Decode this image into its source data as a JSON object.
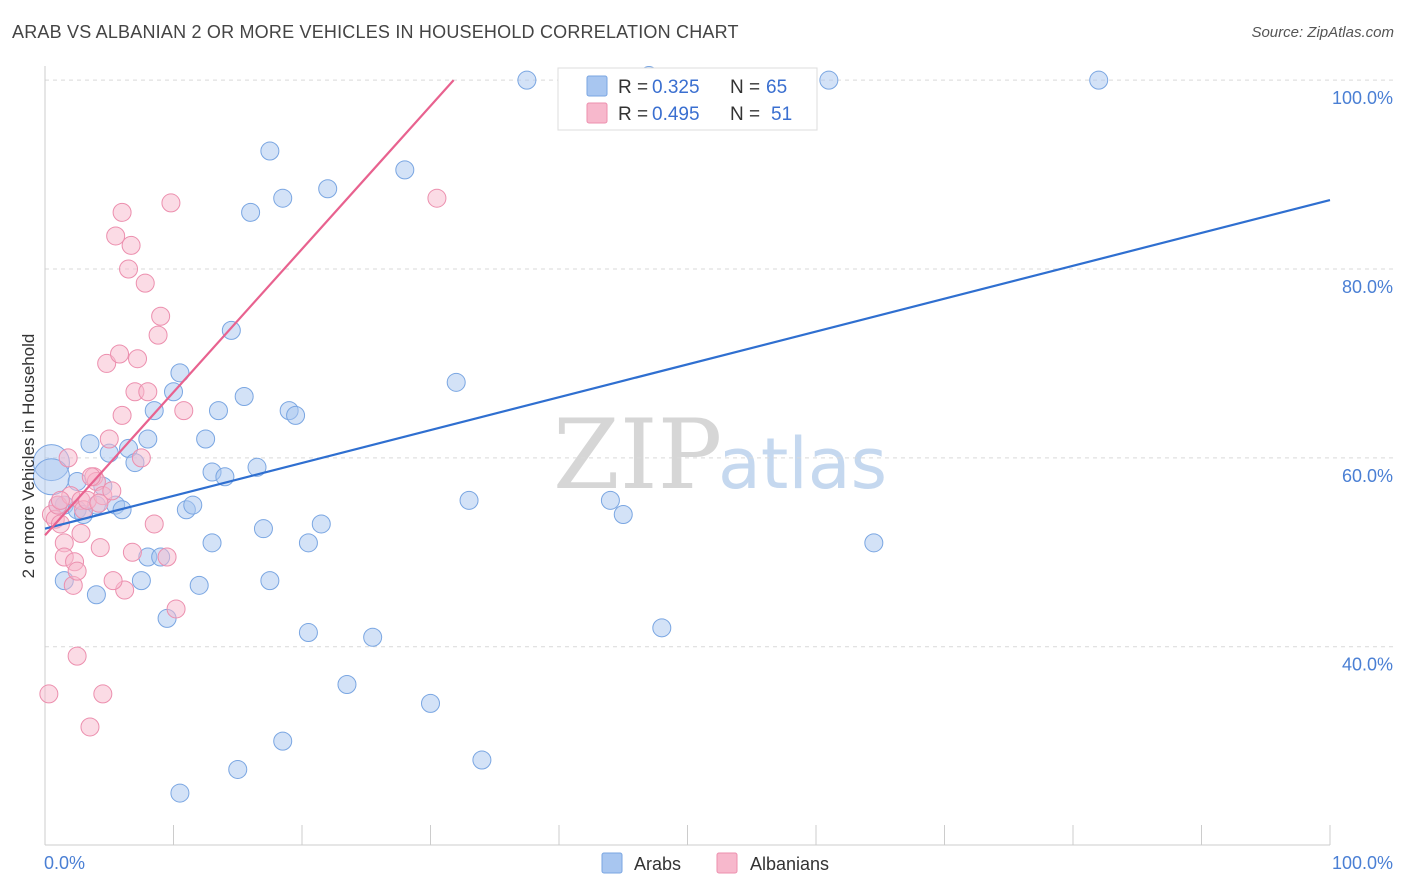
{
  "header": {
    "title": "ARAB VS ALBANIAN 2 OR MORE VEHICLES IN HOUSEHOLD CORRELATION CHART",
    "source": "Source: ZipAtlas.com"
  },
  "watermark": {
    "zip": "ZIP",
    "atlas": "atlas"
  },
  "legend": {
    "items": [
      {
        "r_label": "R =",
        "r_value": "0.325",
        "n_label": "N =",
        "n_value": "65",
        "color": "#a8c6f0"
      },
      {
        "r_label": "R =",
        "r_value": "0.495",
        "n_label": "N =",
        "n_value": "51",
        "color": "#f7b8cc"
      }
    ]
  },
  "bottom_legend": {
    "arabs": "Arabs",
    "albanians": "Albanians"
  },
  "chart_data": {
    "type": "scatter",
    "title": "ARAB VS ALBANIAN 2 OR MORE VEHICLES IN HOUSEHOLD CORRELATION CHART",
    "xlabel": "",
    "ylabel": "2 or more Vehicles in Household",
    "xlim": [
      0,
      100
    ],
    "ylim": [
      19,
      101.5
    ],
    "x_tick_labels": [
      "0.0%",
      "100.0%"
    ],
    "y_ticks": [
      40,
      60,
      80,
      100
    ],
    "y_tick_labels": [
      "40.0%",
      "60.0%",
      "80.0%",
      "100.0%"
    ],
    "grid": true,
    "legend_position": "top-center",
    "colors": {
      "arabs": "#2f6fd0",
      "albanians": "#e8628f",
      "arabs_fill": "#a8c6f0",
      "albanians_fill": "#f7b8cc"
    },
    "series": [
      {
        "name": "Arabs",
        "r": 0.325,
        "n": 65,
        "trend": {
          "x": [
            0,
            100
          ],
          "y": [
            52.5,
            87.3
          ]
        },
        "points": [
          [
            0.5,
            59.5
          ],
          [
            0.5,
            58
          ],
          [
            1.5,
            55
          ],
          [
            1.5,
            47
          ],
          [
            2.5,
            57.5
          ],
          [
            2.5,
            54.5
          ],
          [
            3,
            54
          ],
          [
            3.5,
            61.5
          ],
          [
            4,
            55
          ],
          [
            4,
            45.5
          ],
          [
            4.5,
            57
          ],
          [
            5,
            60.5
          ],
          [
            5.5,
            55
          ],
          [
            6,
            54.5
          ],
          [
            6.5,
            61
          ],
          [
            7,
            59.5
          ],
          [
            7.5,
            47
          ],
          [
            8,
            49.5
          ],
          [
            8,
            62
          ],
          [
            8.5,
            65
          ],
          [
            9,
            49.5
          ],
          [
            9.5,
            43
          ],
          [
            10,
            67
          ],
          [
            10.5,
            69
          ],
          [
            11,
            54.5
          ],
          [
            11.5,
            55
          ],
          [
            12,
            46.5
          ],
          [
            12.5,
            62
          ],
          [
            13,
            58.5
          ],
          [
            13,
            51
          ],
          [
            13.5,
            65
          ],
          [
            14,
            58
          ],
          [
            14.5,
            73.5
          ],
          [
            15,
            27
          ],
          [
            15.5,
            66.5
          ],
          [
            16,
            86
          ],
          [
            16.5,
            59
          ],
          [
            17,
            52.5
          ],
          [
            17.5,
            47
          ],
          [
            17.5,
            92.5
          ],
          [
            18.5,
            30
          ],
          [
            18.5,
            87.5
          ],
          [
            19,
            65
          ],
          [
            19.5,
            64.5
          ],
          [
            20.5,
            41.5
          ],
          [
            20.5,
            51
          ],
          [
            21.5,
            53
          ],
          [
            22,
            88.5
          ],
          [
            23.5,
            36
          ],
          [
            25.5,
            41
          ],
          [
            28,
            90.5
          ],
          [
            30,
            34
          ],
          [
            32,
            68
          ],
          [
            33,
            55.5
          ],
          [
            34,
            28
          ],
          [
            37.5,
            100
          ],
          [
            44,
            55.5
          ],
          [
            45,
            54
          ],
          [
            47,
            100.5
          ],
          [
            48,
            42
          ],
          [
            61,
            100
          ],
          [
            64.5,
            51
          ],
          [
            82,
            100
          ],
          [
            10.5,
            24.5
          ],
          [
            1,
            55
          ]
        ]
      },
      {
        "name": "Albanians",
        "r": 0.495,
        "n": 51,
        "trend": {
          "x": [
            0,
            31.8
          ],
          "y": [
            51.8,
            100
          ]
        },
        "points": [
          [
            0.3,
            35
          ],
          [
            0.5,
            54
          ],
          [
            0.8,
            53.5
          ],
          [
            1,
            55
          ],
          [
            1.2,
            53
          ],
          [
            1.5,
            51
          ],
          [
            1.5,
            49.5
          ],
          [
            1.8,
            60
          ],
          [
            2,
            56
          ],
          [
            2.2,
            46.5
          ],
          [
            2.3,
            49
          ],
          [
            2.5,
            48
          ],
          [
            2.5,
            39
          ],
          [
            2.8,
            55.5
          ],
          [
            3,
            54.5
          ],
          [
            3.3,
            55.5
          ],
          [
            3.5,
            31.5
          ],
          [
            3.8,
            58
          ],
          [
            4,
            57.5
          ],
          [
            4.3,
            50.5
          ],
          [
            4.5,
            56
          ],
          [
            4.5,
            35
          ],
          [
            4.8,
            70
          ],
          [
            5,
            62
          ],
          [
            5.2,
            56.5
          ],
          [
            5.5,
            83.5
          ],
          [
            5.8,
            71
          ],
          [
            6,
            64.5
          ],
          [
            6,
            86
          ],
          [
            6.2,
            46
          ],
          [
            6.5,
            80
          ],
          [
            6.7,
            82.5
          ],
          [
            6.8,
            50
          ],
          [
            7,
            67
          ],
          [
            7.2,
            70.5
          ],
          [
            7.5,
            60
          ],
          [
            7.8,
            78.5
          ],
          [
            8,
            67
          ],
          [
            8.5,
            53
          ],
          [
            8.8,
            73
          ],
          [
            9,
            75
          ],
          [
            9.5,
            49.5
          ],
          [
            9.8,
            87
          ],
          [
            10.2,
            44
          ],
          [
            10.8,
            65
          ],
          [
            30.5,
            87.5
          ],
          [
            1.2,
            55.5
          ],
          [
            2.8,
            52
          ],
          [
            3.6,
            58
          ],
          [
            5.3,
            47
          ],
          [
            4.2,
            55.2
          ]
        ]
      }
    ]
  }
}
